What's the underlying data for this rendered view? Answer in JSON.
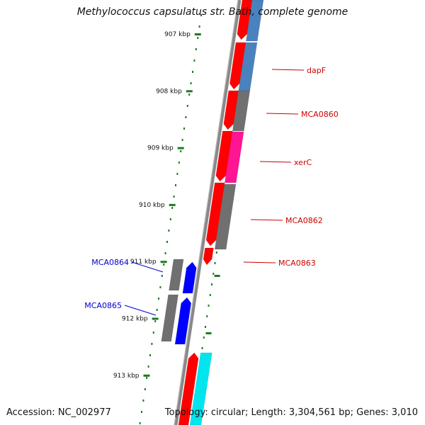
{
  "title": "Methylococcus capsulatus str. Bath, complete genome",
  "footer": {
    "accession": "Accession: NC_002977",
    "summary": "Topology: circular; Length: 3,304,561 bp; Genes: 3,010"
  },
  "ruler": {
    "ticks": [
      "907 kbp",
      "908 kbp",
      "909 kbp",
      "910 kbp",
      "911 kbp",
      "912 kbp",
      "913 kbp"
    ],
    "tick_color": "#1e7b1e"
  },
  "colors": {
    "cds_forward": "#ff0000",
    "cds_reverse": "#0000ff",
    "backbone": "#8a8a8a",
    "cog_steel": "#4a82bd",
    "cog_gray": "#707070",
    "cog_pink": "#ff1493",
    "cog_cyan": "#00e5ee",
    "label_forward": "#cc0000",
    "label_reverse": "#0000cc"
  },
  "gene_labels": [
    {
      "text": "dapF",
      "strand": "forward"
    },
    {
      "text": "MCA0860",
      "strand": "forward"
    },
    {
      "text": "xerC",
      "strand": "forward"
    },
    {
      "text": "MCA0862",
      "strand": "forward"
    },
    {
      "text": "MCA0863",
      "strand": "forward"
    },
    {
      "text": "MCA0864",
      "strand": "reverse"
    },
    {
      "text": "MCA0865",
      "strand": "reverse"
    }
  ]
}
